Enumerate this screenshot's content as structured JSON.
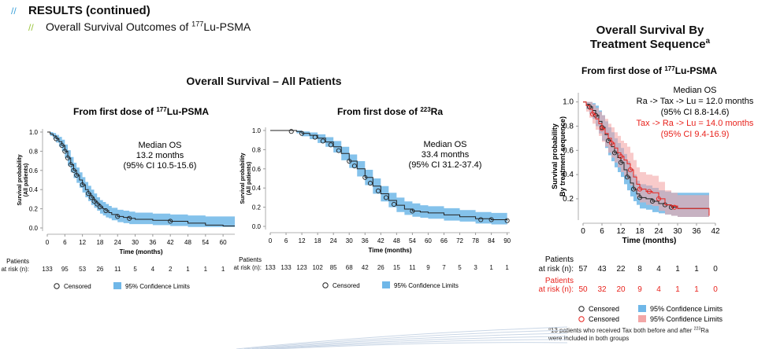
{
  "header": {
    "title": "RESULTS (continued)",
    "subtitle_pre": "Overall Survival Outcomes of ",
    "subtitle_sup": "177",
    "subtitle_post": "Lu-PSMA"
  },
  "all_patients_title": "Overall Survival – All Patients",
  "sequence_title_line1": "Overall Survival By",
  "sequence_title_line2": "Treatment Sequence",
  "sequence_title_sup": "a",
  "footnote_sup_a": "a",
  "footnote_line1_pre": "13 patients who received Tax both before and after ",
  "footnote_sup_ra": "223",
  "footnote_line1_post": "Ra",
  "footnote_line2": "were included in both groups",
  "colors": {
    "ci_blue": "#6fb7e8",
    "ci_red": "#f3a6a6",
    "red_text": "#e8221c",
    "curve": "#222222"
  },
  "chart_data": [
    {
      "type": "line",
      "panel_title_pre": "From first dose of ",
      "panel_title_sup": "177",
      "panel_title_post": "Lu-PSMA",
      "xlabel": "Time (months)",
      "ylabel_line1": "Survival probability",
      "ylabel_line2": "(All patients)",
      "xlim": [
        0,
        64
      ],
      "ylim": [
        0,
        1
      ],
      "x_ticks": [
        0,
        6,
        12,
        18,
        24,
        30,
        36,
        42,
        48,
        54,
        60
      ],
      "y_ticks": [
        "0.0",
        "0.2",
        "0.4",
        "0.6",
        "0.8",
        "1.0"
      ],
      "median_lines": [
        "Median OS",
        "13.2 months",
        "(95% CI 10.5-15.6)"
      ],
      "risk_label_line1": "Patients",
      "risk_label_line2": "at risk (n):",
      "at_risk": [
        "133",
        "95",
        "53",
        "26",
        "11",
        "5",
        "4",
        "2",
        "1",
        "1",
        "1"
      ],
      "legend_censored": "Censored",
      "legend_ci": "95% Confidence Limits",
      "series": [
        {
          "x": [
            0,
            1,
            2,
            3,
            4,
            5,
            6,
            7,
            8,
            9,
            10,
            11,
            12,
            13,
            14,
            15,
            16,
            17,
            18,
            19,
            20,
            21,
            22,
            24,
            26,
            28,
            30,
            36,
            42,
            48,
            54,
            60,
            64
          ],
          "y": [
            1.0,
            0.98,
            0.96,
            0.93,
            0.9,
            0.86,
            0.8,
            0.73,
            0.66,
            0.6,
            0.55,
            0.5,
            0.45,
            0.4,
            0.36,
            0.32,
            0.28,
            0.25,
            0.22,
            0.2,
            0.18,
            0.16,
            0.14,
            0.12,
            0.11,
            0.1,
            0.09,
            0.08,
            0.07,
            0.05,
            0.03,
            0.02,
            0.02
          ],
          "lower": [
            1.0,
            0.96,
            0.93,
            0.89,
            0.85,
            0.8,
            0.73,
            0.65,
            0.58,
            0.52,
            0.47,
            0.42,
            0.37,
            0.32,
            0.28,
            0.24,
            0.21,
            0.18,
            0.15,
            0.13,
            0.11,
            0.1,
            0.08,
            0.06,
            0.05,
            0.04,
            0.04,
            0.03,
            0.02,
            0.01,
            0.01,
            0.01,
            0.01
          ],
          "upper": [
            1.0,
            1.0,
            0.99,
            0.97,
            0.95,
            0.92,
            0.87,
            0.81,
            0.74,
            0.68,
            0.63,
            0.58,
            0.53,
            0.48,
            0.44,
            0.4,
            0.36,
            0.32,
            0.29,
            0.27,
            0.25,
            0.23,
            0.21,
            0.19,
            0.18,
            0.17,
            0.16,
            0.15,
            0.14,
            0.13,
            0.12,
            0.12,
            0.12
          ],
          "censored": [
            [
              3,
              0.93
            ],
            [
              5,
              0.86
            ],
            [
              6,
              0.8
            ],
            [
              7,
              0.73
            ],
            [
              8,
              0.66
            ],
            [
              9,
              0.6
            ],
            [
              10,
              0.55
            ],
            [
              12,
              0.45
            ],
            [
              14,
              0.36
            ],
            [
              15,
              0.32
            ],
            [
              16,
              0.28
            ],
            [
              17,
              0.25
            ],
            [
              18,
              0.22
            ],
            [
              20,
              0.18
            ],
            [
              24,
              0.12
            ],
            [
              28,
              0.1
            ],
            [
              42,
              0.07
            ]
          ]
        }
      ]
    },
    {
      "type": "line",
      "panel_title_pre": "From first dose of ",
      "panel_title_sup": "223",
      "panel_title_post": "Ra",
      "xlabel": "Time (months)",
      "ylabel_line1": "Survival probability",
      "ylabel_line2": "(All patients)",
      "xlim": [
        0,
        91
      ],
      "ylim": [
        0,
        1
      ],
      "x_ticks": [
        0,
        6,
        12,
        18,
        24,
        30,
        36,
        42,
        48,
        54,
        60,
        66,
        72,
        78,
        84,
        90
      ],
      "y_ticks": [
        "0.0",
        "0.2",
        "0.4",
        "0.6",
        "0.8",
        "1.0"
      ],
      "median_lines": [
        "Median OS",
        "33.4 months",
        "(95% CI 31.2-37.4)"
      ],
      "risk_label_line1": "Patients",
      "risk_label_line2": "at risk (n):",
      "at_risk": [
        "133",
        "133",
        "123",
        "102",
        "85",
        "68",
        "42",
        "26",
        "15",
        "11",
        "9",
        "7",
        "5",
        "3",
        "1",
        "1"
      ],
      "legend_censored": "Censored",
      "legend_ci": "95% Confidence Limits",
      "series": [
        {
          "x": [
            0,
            6,
            10,
            12,
            15,
            18,
            21,
            24,
            27,
            30,
            33,
            36,
            39,
            42,
            45,
            48,
            51,
            54,
            57,
            60,
            66,
            72,
            78,
            84,
            90
          ],
          "y": [
            1.0,
            1.0,
            0.99,
            0.97,
            0.95,
            0.92,
            0.88,
            0.83,
            0.76,
            0.68,
            0.6,
            0.51,
            0.42,
            0.34,
            0.27,
            0.22,
            0.18,
            0.16,
            0.15,
            0.14,
            0.12,
            0.1,
            0.08,
            0.07,
            0.06
          ],
          "lower": [
            1.0,
            1.0,
            0.97,
            0.94,
            0.91,
            0.87,
            0.83,
            0.77,
            0.69,
            0.61,
            0.52,
            0.43,
            0.34,
            0.26,
            0.2,
            0.15,
            0.12,
            0.1,
            0.09,
            0.08,
            0.06,
            0.05,
            0.03,
            0.02,
            0.02
          ],
          "upper": [
            1.0,
            1.0,
            1.0,
            0.99,
            0.98,
            0.96,
            0.93,
            0.89,
            0.83,
            0.75,
            0.68,
            0.59,
            0.5,
            0.42,
            0.35,
            0.3,
            0.26,
            0.24,
            0.22,
            0.21,
            0.19,
            0.17,
            0.15,
            0.14,
            0.13
          ],
          "censored": [
            [
              8,
              0.99
            ],
            [
              12,
              0.97
            ],
            [
              17,
              0.93
            ],
            [
              20,
              0.89
            ],
            [
              23,
              0.85
            ],
            [
              26,
              0.79
            ],
            [
              30,
              0.68
            ],
            [
              32,
              0.63
            ],
            [
              36,
              0.51
            ],
            [
              38,
              0.45
            ],
            [
              41,
              0.37
            ],
            [
              44,
              0.3
            ],
            [
              47,
              0.23
            ],
            [
              54,
              0.16
            ],
            [
              80,
              0.07
            ],
            [
              84,
              0.07
            ],
            [
              90,
              0.06
            ]
          ]
        }
      ]
    },
    {
      "type": "line",
      "panel_title_pre": "From first dose of ",
      "panel_title_sup": "177",
      "panel_title_post": "Lu-PSMA",
      "xlabel": "Time (months)",
      "ylabel_line1": "Survival probability",
      "ylabel_line2": "By treatment sequence)",
      "xlim": [
        0,
        42
      ],
      "ylim": [
        0.05,
        1.05
      ],
      "x_ticks": [
        0,
        6,
        12,
        18,
        24,
        30,
        36,
        42
      ],
      "y_ticks": [
        "0.2",
        "0.4",
        "0.6",
        "0.8",
        "1.0"
      ],
      "y_tick_values": [
        0.2,
        0.4,
        0.6,
        0.8,
        1.0
      ],
      "median_title": "Median OS",
      "median_black_line1": "Ra -> Tax -> Lu = 12.0 months",
      "median_black_line2": "(95% CI 8.8-14.6)",
      "median_red_line1": "Tax -> Ra -> Lu = 14.0 months",
      "median_red_line2": "(95% CI 9.4-16.9)",
      "risk_label_line1": "Patients",
      "risk_label_line2": "at risk (n):",
      "at_risk_black": [
        "57",
        "43",
        "22",
        "8",
        "4",
        "1",
        "1",
        "0"
      ],
      "at_risk_red": [
        "50",
        "32",
        "20",
        "9",
        "4",
        "1",
        "1",
        "0"
      ],
      "legend_censored": "Censored",
      "legend_ci": "95% Confidence Limits",
      "series": [
        {
          "name": "Ra -> Tax -> Lu",
          "x": [
            0,
            1,
            2,
            3,
            4,
            5,
            6,
            7,
            8,
            9,
            10,
            11,
            12,
            13,
            14,
            15,
            16,
            17,
            18,
            20,
            22,
            24,
            26,
            28,
            30,
            33,
            36,
            39,
            40
          ],
          "y": [
            1.0,
            0.98,
            0.96,
            0.93,
            0.89,
            0.84,
            0.79,
            0.73,
            0.68,
            0.63,
            0.58,
            0.54,
            0.5,
            0.44,
            0.38,
            0.33,
            0.28,
            0.24,
            0.21,
            0.2,
            0.18,
            0.16,
            0.15,
            0.13,
            0.12,
            0.12,
            0.12,
            0.12,
            0.06
          ],
          "lower": [
            1.0,
            0.94,
            0.9,
            0.86,
            0.8,
            0.74,
            0.68,
            0.62,
            0.56,
            0.51,
            0.46,
            0.42,
            0.38,
            0.32,
            0.27,
            0.22,
            0.18,
            0.15,
            0.12,
            0.11,
            0.09,
            0.08,
            0.07,
            0.06,
            0.05,
            0.05,
            0.05,
            0.05,
            0.05
          ],
          "upper": [
            1.0,
            1.0,
            1.0,
            0.99,
            0.97,
            0.93,
            0.89,
            0.84,
            0.79,
            0.75,
            0.7,
            0.66,
            0.62,
            0.57,
            0.51,
            0.45,
            0.4,
            0.35,
            0.32,
            0.31,
            0.29,
            0.27,
            0.26,
            0.25,
            0.25,
            0.25,
            0.25,
            0.25,
            0.25
          ],
          "censored": [
            [
              2,
              0.96
            ],
            [
              4,
              0.89
            ],
            [
              6,
              0.79
            ],
            [
              8,
              0.68
            ],
            [
              10,
              0.58
            ],
            [
              12,
              0.5
            ],
            [
              14,
              0.38
            ],
            [
              16,
              0.28
            ],
            [
              18,
              0.21
            ],
            [
              22,
              0.18
            ],
            [
              26,
              0.15
            ],
            [
              28,
              0.13
            ]
          ]
        },
        {
          "name": "Tax -> Ra -> Lu",
          "x": [
            0,
            1,
            2,
            3,
            4,
            5,
            6,
            7,
            8,
            9,
            10,
            11,
            12,
            13,
            14,
            15,
            16,
            17,
            18,
            20,
            22,
            24,
            26,
            28,
            30,
            33,
            36,
            39,
            40
          ],
          "y": [
            1.0,
            0.97,
            0.94,
            0.9,
            0.86,
            0.82,
            0.78,
            0.74,
            0.7,
            0.66,
            0.62,
            0.58,
            0.55,
            0.52,
            0.49,
            0.44,
            0.38,
            0.32,
            0.28,
            0.26,
            0.25,
            0.2,
            0.15,
            0.14,
            0.12,
            0.12,
            0.12,
            0.12,
            0.06
          ],
          "lower": [
            1.0,
            0.92,
            0.87,
            0.82,
            0.77,
            0.72,
            0.67,
            0.63,
            0.58,
            0.54,
            0.5,
            0.46,
            0.42,
            0.39,
            0.36,
            0.31,
            0.26,
            0.21,
            0.17,
            0.15,
            0.14,
            0.1,
            0.07,
            0.06,
            0.05,
            0.05,
            0.05,
            0.05,
            0.05
          ],
          "upper": [
            1.0,
            1.0,
            1.0,
            0.98,
            0.95,
            0.92,
            0.89,
            0.86,
            0.82,
            0.79,
            0.75,
            0.72,
            0.68,
            0.66,
            0.63,
            0.58,
            0.52,
            0.46,
            0.42,
            0.4,
            0.39,
            0.34,
            0.27,
            0.25,
            0.23,
            0.23,
            0.23,
            0.23,
            0.23
          ],
          "censored": [
            [
              3,
              0.9
            ],
            [
              6,
              0.78
            ],
            [
              9,
              0.66
            ],
            [
              12,
              0.55
            ],
            [
              15,
              0.44
            ],
            [
              18,
              0.28
            ],
            [
              21,
              0.26
            ],
            [
              24,
              0.2
            ],
            [
              29,
              0.13
            ]
          ]
        }
      ]
    }
  ]
}
